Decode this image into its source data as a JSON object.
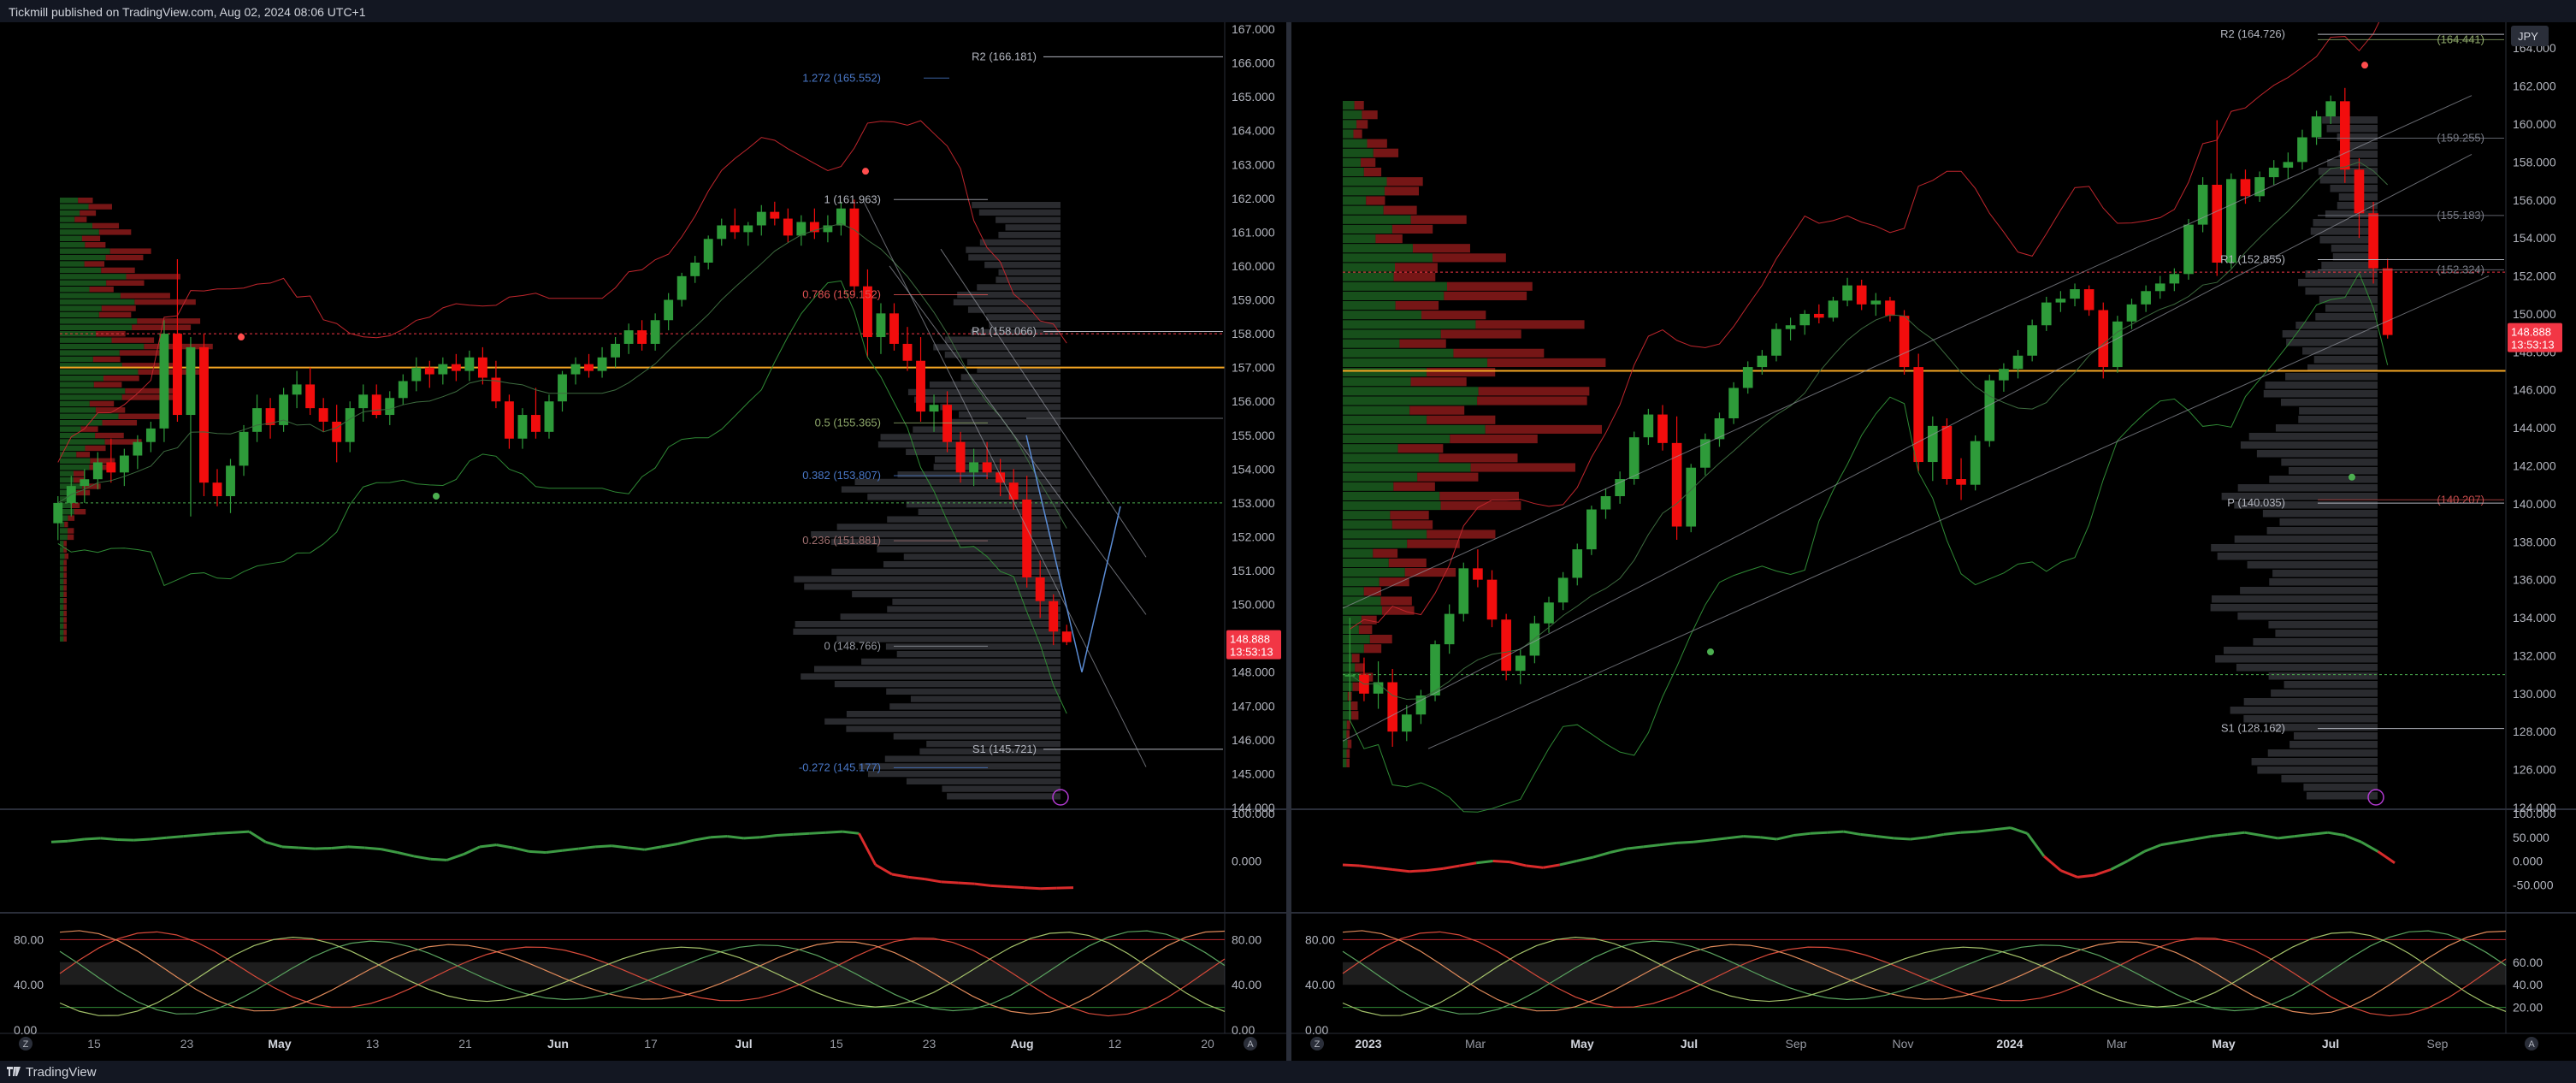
{
  "header": {
    "published": "Tickmill published on TradingView.com, Aug 02, 2024 08:06 UTC+1"
  },
  "footer": {
    "brand": "TradingView"
  },
  "colors": {
    "up": "#2e7d32",
    "down": "#f23645",
    "fib": "#6c8ebf",
    "pivot": "#b2b5be",
    "accent": "#f5a623"
  },
  "charts": [
    {
      "price_axis": [
        "167.000",
        "166.000",
        "165.000",
        "164.000",
        "163.000",
        "162.000",
        "161.000",
        "160.000",
        "159.000",
        "158.000",
        "157.000",
        "156.000",
        "155.000",
        "154.000",
        "153.000",
        "152.000",
        "151.000",
        "150.000",
        "149.000",
        "148.000",
        "147.000",
        "146.000",
        "145.000",
        "144.000"
      ],
      "price_badge": {
        "price": "148.888",
        "time": "13:53:13"
      },
      "fib_labels": [
        "1.272 (165.552)",
        "1 (161.963)",
        "0.786 (159.152)",
        "0.5 (155.365)",
        "0.382 (153.807)",
        "0.236 (151.881)",
        "0 (148.766)",
        "-0.272 (145.177)"
      ],
      "pivot_labels": [
        "R2 (166.181)",
        "R1 (158.066)",
        "S1 (145.721)"
      ],
      "rsi_axis": [
        "100.000",
        "0.000"
      ],
      "stoch_axis_left": [
        "80.00",
        "40.00",
        "0.00"
      ],
      "stoch_axis_right": [
        "80.00",
        "40.00",
        "0.00"
      ],
      "time_axis": [
        "15",
        "23",
        "May",
        "13",
        "21",
        "Jun",
        "17",
        "Jul",
        "15",
        "23",
        "Aug",
        "12",
        "20"
      ],
      "corner_left": "Z",
      "corner_right": "A"
    },
    {
      "price_axis": [
        "164.000",
        "162.000",
        "160.000",
        "158.000",
        "156.000",
        "154.000",
        "152.000",
        "150.000",
        "148.000",
        "146.000",
        "144.000",
        "142.000",
        "140.000",
        "138.000",
        "136.000",
        "134.000",
        "132.000",
        "130.000",
        "128.000",
        "126.000",
        "124.000"
      ],
      "currency": "JPY",
      "price_badge": {
        "price": "148.888",
        "time": "13:53:13"
      },
      "fib_labels": [
        "(164.441)",
        "(159.255)",
        "(155.183)",
        "(152.324)",
        "(140.207)"
      ],
      "pivot_labels": [
        "R2 (164.726)",
        "R1 (152.855)",
        "P (140.035)",
        "S1 (128.162)"
      ],
      "rsi_axis": [
        "100.000",
        "50.000",
        "0.000",
        "-50.000"
      ],
      "stoch_axis_left": [
        "80.00",
        "40.00",
        "0.00"
      ],
      "stoch_axis_right": [
        "60.00",
        "40.00",
        "20.00"
      ],
      "time_axis": [
        "2023",
        "Mar",
        "May",
        "Jul",
        "Sep",
        "Nov",
        "2024",
        "Mar",
        "May",
        "Jul",
        "Sep"
      ],
      "corner_left": "Z",
      "corner_right": "A"
    }
  ],
  "chart_data": [
    {
      "type": "candlestick",
      "title": "",
      "ylim": [
        144,
        167
      ],
      "candles": [
        [
          152.4,
          153.2,
          151.9,
          153.0
        ],
        [
          153.0,
          153.8,
          152.6,
          153.5
        ],
        [
          153.5,
          154.0,
          153.0,
          153.7
        ],
        [
          153.7,
          154.5,
          153.4,
          154.2
        ],
        [
          154.2,
          154.9,
          153.6,
          153.9
        ],
        [
          153.9,
          154.6,
          153.5,
          154.4
        ],
        [
          154.4,
          155.0,
          154.0,
          154.8
        ],
        [
          154.8,
          155.4,
          154.5,
          155.2
        ],
        [
          155.2,
          158.4,
          154.8,
          158.0
        ],
        [
          158.0,
          160.2,
          155.4,
          155.6
        ],
        [
          155.6,
          157.9,
          152.6,
          157.6
        ],
        [
          157.6,
          158.0,
          153.2,
          153.6
        ],
        [
          153.6,
          154.0,
          152.9,
          153.2
        ],
        [
          153.2,
          154.3,
          152.7,
          154.1
        ],
        [
          154.1,
          155.3,
          153.8,
          155.1
        ],
        [
          155.1,
          156.2,
          154.8,
          155.8
        ],
        [
          155.8,
          156.1,
          154.9,
          155.3
        ],
        [
          155.3,
          156.4,
          155.1,
          156.2
        ],
        [
          156.2,
          156.9,
          155.8,
          156.5
        ],
        [
          156.5,
          157.0,
          155.6,
          155.8
        ],
        [
          155.8,
          156.1,
          155.1,
          155.4
        ],
        [
          155.4,
          155.9,
          154.2,
          154.8
        ],
        [
          154.8,
          156.0,
          154.5,
          155.8
        ],
        [
          155.8,
          156.5,
          155.4,
          156.2
        ],
        [
          156.2,
          156.5,
          155.5,
          155.6
        ],
        [
          155.6,
          156.3,
          155.3,
          156.1
        ],
        [
          156.1,
          156.8,
          155.9,
          156.6
        ],
        [
          156.6,
          157.3,
          156.3,
          157.0
        ],
        [
          157.0,
          157.2,
          156.4,
          156.8
        ],
        [
          156.8,
          157.3,
          156.5,
          157.1
        ],
        [
          157.1,
          157.4,
          156.6,
          156.9
        ],
        [
          156.9,
          157.5,
          156.6,
          157.3
        ],
        [
          157.3,
          157.6,
          156.5,
          156.7
        ],
        [
          156.7,
          157.2,
          155.8,
          156.0
        ],
        [
          156.0,
          156.2,
          154.6,
          154.9
        ],
        [
          154.9,
          155.8,
          154.6,
          155.6
        ],
        [
          155.6,
          156.4,
          154.9,
          155.1
        ],
        [
          155.1,
          156.2,
          154.9,
          156.0
        ],
        [
          156.0,
          156.9,
          155.7,
          156.8
        ],
        [
          156.8,
          157.3,
          156.5,
          157.1
        ],
        [
          157.1,
          157.4,
          156.7,
          156.9
        ],
        [
          156.9,
          157.6,
          156.7,
          157.3
        ],
        [
          157.3,
          157.9,
          157.0,
          157.7
        ],
        [
          157.7,
          158.3,
          157.4,
          158.1
        ],
        [
          158.1,
          158.4,
          157.5,
          157.7
        ],
        [
          157.7,
          158.6,
          157.5,
          158.4
        ],
        [
          158.4,
          159.2,
          158.1,
          159.0
        ],
        [
          159.0,
          159.8,
          158.8,
          159.7
        ],
        [
          159.7,
          160.3,
          159.5,
          160.1
        ],
        [
          160.1,
          160.9,
          159.9,
          160.8
        ],
        [
          160.8,
          161.4,
          160.6,
          161.2
        ],
        [
          161.2,
          161.7,
          160.8,
          161.0
        ],
        [
          161.0,
          161.3,
          160.6,
          161.2
        ],
        [
          161.2,
          161.8,
          160.9,
          161.6
        ],
        [
          161.6,
          161.9,
          161.2,
          161.4
        ],
        [
          161.4,
          161.7,
          160.7,
          160.9
        ],
        [
          160.9,
          161.5,
          160.6,
          161.3
        ],
        [
          161.3,
          161.7,
          160.8,
          161.0
        ],
        [
          161.0,
          161.5,
          160.7,
          161.2
        ],
        [
          161.2,
          161.9,
          160.9,
          161.7
        ],
        [
          161.7,
          161.96,
          159.1,
          159.4
        ],
        [
          159.4,
          159.9,
          157.3,
          157.9
        ],
        [
          157.9,
          158.9,
          157.4,
          158.6
        ],
        [
          158.6,
          158.9,
          157.5,
          157.7
        ],
        [
          157.7,
          158.2,
          156.9,
          157.2
        ],
        [
          157.2,
          157.9,
          155.4,
          155.7
        ],
        [
          155.7,
          156.2,
          155.1,
          155.9
        ],
        [
          155.9,
          156.3,
          154.5,
          154.8
        ],
        [
          154.8,
          155.1,
          153.6,
          153.9
        ],
        [
          153.9,
          154.6,
          153.5,
          154.2
        ],
        [
          154.2,
          154.8,
          153.7,
          153.9
        ],
        [
          153.9,
          154.3,
          153.2,
          153.6
        ],
        [
          153.6,
          154.0,
          152.8,
          153.1
        ],
        [
          153.1,
          153.8,
          150.5,
          150.8
        ],
        [
          150.8,
          151.3,
          149.6,
          150.1
        ],
        [
          150.1,
          150.3,
          148.8,
          149.2
        ],
        [
          149.2,
          149.4,
          148.8,
          148.888
        ]
      ]
    },
    {
      "type": "candlestick",
      "title": "",
      "ylim": [
        124,
        165
      ],
      "candles": [
        [
          130.9,
          134.0,
          128.6,
          131.0
        ],
        [
          131.0,
          131.9,
          129.6,
          130.0
        ],
        [
          130.0,
          131.7,
          129.2,
          130.6
        ],
        [
          130.6,
          131.3,
          127.2,
          128.0
        ],
        [
          128.0,
          129.4,
          127.5,
          128.9
        ],
        [
          128.9,
          130.2,
          128.4,
          129.9
        ],
        [
          129.9,
          132.8,
          129.6,
          132.6
        ],
        [
          132.6,
          134.7,
          132.1,
          134.2
        ],
        [
          134.2,
          136.9,
          133.8,
          136.6
        ],
        [
          136.6,
          137.6,
          135.6,
          136.0
        ],
        [
          136.0,
          136.5,
          133.5,
          133.9
        ],
        [
          133.9,
          134.2,
          130.7,
          131.2
        ],
        [
          131.2,
          132.3,
          130.5,
          132.0
        ],
        [
          132.0,
          134.1,
          131.6,
          133.7
        ],
        [
          133.7,
          135.1,
          133.2,
          134.8
        ],
        [
          134.8,
          136.4,
          134.4,
          136.1
        ],
        [
          136.1,
          137.9,
          135.7,
          137.6
        ],
        [
          137.6,
          139.9,
          137.3,
          139.7
        ],
        [
          139.7,
          140.8,
          139.2,
          140.4
        ],
        [
          140.4,
          141.7,
          140.0,
          141.3
        ],
        [
          141.3,
          143.8,
          141.0,
          143.5
        ],
        [
          143.5,
          145.0,
          143.1,
          144.7
        ],
        [
          144.7,
          145.2,
          142.8,
          143.2
        ],
        [
          143.2,
          144.6,
          138.1,
          138.8
        ],
        [
          138.8,
          142.1,
          138.5,
          141.9
        ],
        [
          141.9,
          143.7,
          141.5,
          143.4
        ],
        [
          143.4,
          144.8,
          143.0,
          144.5
        ],
        [
          144.5,
          146.4,
          144.2,
          146.1
        ],
        [
          146.1,
          147.5,
          145.8,
          147.2
        ],
        [
          147.2,
          148.1,
          146.8,
          147.8
        ],
        [
          147.8,
          149.5,
          147.5,
          149.2
        ],
        [
          149.2,
          149.8,
          148.6,
          149.4
        ],
        [
          149.4,
          150.2,
          148.9,
          150.0
        ],
        [
          150.0,
          150.5,
          149.5,
          149.8
        ],
        [
          149.8,
          150.9,
          149.6,
          150.7
        ],
        [
          150.7,
          151.9,
          150.4,
          151.5
        ],
        [
          151.5,
          151.8,
          150.2,
          150.5
        ],
        [
          150.5,
          151.1,
          149.9,
          150.7
        ],
        [
          150.7,
          150.9,
          149.6,
          149.9
        ],
        [
          149.9,
          150.2,
          146.8,
          147.2
        ],
        [
          147.2,
          147.9,
          141.7,
          142.2
        ],
        [
          142.2,
          144.6,
          141.2,
          144.1
        ],
        [
          144.1,
          144.5,
          141.0,
          141.3
        ],
        [
          141.3,
          142.4,
          140.2,
          141.0
        ],
        [
          141.0,
          143.6,
          140.7,
          143.3
        ],
        [
          143.3,
          146.8,
          143.0,
          146.5
        ],
        [
          146.5,
          147.4,
          145.9,
          147.1
        ],
        [
          147.1,
          148.1,
          146.6,
          147.8
        ],
        [
          147.8,
          149.7,
          147.5,
          149.4
        ],
        [
          149.4,
          150.9,
          149.1,
          150.6
        ],
        [
          150.6,
          151.2,
          150.1,
          150.8
        ],
        [
          150.8,
          151.6,
          150.4,
          151.3
        ],
        [
          151.3,
          151.5,
          149.9,
          150.2
        ],
        [
          150.2,
          150.6,
          146.6,
          147.2
        ],
        [
          147.2,
          149.9,
          146.9,
          149.6
        ],
        [
          149.6,
          150.8,
          149.2,
          150.5
        ],
        [
          150.5,
          151.5,
          150.1,
          151.2
        ],
        [
          151.2,
          152.0,
          150.8,
          151.6
        ],
        [
          151.6,
          152.4,
          151.2,
          152.1
        ],
        [
          152.1,
          155.0,
          151.8,
          154.7
        ],
        [
          154.7,
          157.2,
          154.3,
          156.8
        ],
        [
          156.8,
          160.2,
          152.0,
          152.7
        ],
        [
          152.7,
          157.4,
          152.4,
          157.1
        ],
        [
          157.1,
          157.6,
          155.8,
          156.2
        ],
        [
          156.2,
          157.5,
          155.9,
          157.2
        ],
        [
          157.2,
          158.1,
          156.8,
          157.7
        ],
        [
          157.7,
          158.5,
          157.1,
          158.0
        ],
        [
          158.0,
          159.7,
          157.6,
          159.3
        ],
        [
          159.3,
          160.7,
          158.9,
          160.4
        ],
        [
          160.4,
          161.5,
          160.0,
          161.2
        ],
        [
          161.2,
          161.9,
          156.9,
          157.6
        ],
        [
          157.6,
          158.2,
          154.0,
          155.3
        ],
        [
          155.3,
          155.9,
          151.6,
          152.4
        ],
        [
          152.4,
          152.9,
          148.7,
          148.888
        ]
      ]
    }
  ]
}
